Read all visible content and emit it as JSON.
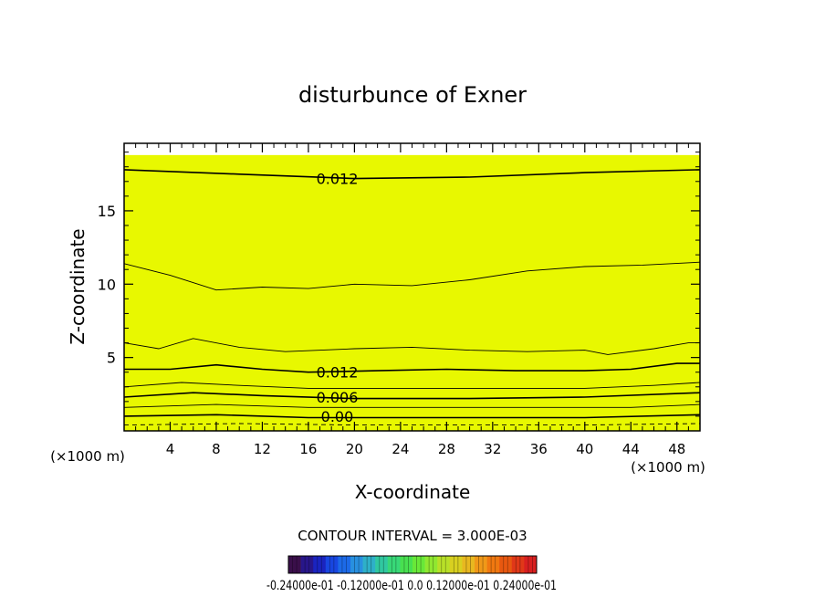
{
  "chart_data": {
    "type": "heatmap",
    "title": "disturbunce of Exner",
    "xlabel": "X-coordinate",
    "ylabel": "Z-coordinate",
    "x_unit": "(×1000 m)",
    "z_unit": "(×1000 m)",
    "xlim": [
      0,
      50
    ],
    "ylim": [
      0,
      19.6
    ],
    "x_ticks": [
      4,
      8,
      12,
      16,
      20,
      24,
      28,
      32,
      36,
      40,
      44,
      48
    ],
    "y_ticks": [
      5,
      10,
      15
    ],
    "contour_interval_text": "CONTOUR INTERVAL = 3.000E-03",
    "contour_labels": [
      {
        "text": "0.012",
        "x": 18.5,
        "z": 17.2
      },
      {
        "text": "0.012",
        "x": 18.5,
        "z": 4.0
      },
      {
        "text": "0.006",
        "x": 18.5,
        "z": 2.3
      },
      {
        "text": "0.00",
        "x": 18.5,
        "z": 1.0
      }
    ],
    "bands": [
      {
        "z": 0.0,
        "color": "#30e840"
      },
      {
        "z": 0.8,
        "color": "#38f040"
      },
      {
        "z": 1.5,
        "color": "#60f830"
      },
      {
        "z": 2.2,
        "color": "#80f828"
      },
      {
        "z": 2.9,
        "color": "#a8f820"
      },
      {
        "z": 3.6,
        "color": "#d0f818"
      },
      {
        "z": 4.3,
        "color": "#f0f000"
      },
      {
        "z": 4.9,
        "color": "#f8d800"
      },
      {
        "z": 5.5,
        "color": "#f8c000"
      },
      {
        "z": 6.3,
        "color": "#f8b000"
      },
      {
        "z": 7.4,
        "color": "#f8a000"
      },
      {
        "z": 9.6,
        "color": "#f8b000"
      },
      {
        "z": 11.3,
        "color": "#f8c000"
      },
      {
        "z": 13.2,
        "color": "#f8d000"
      },
      {
        "z": 15.5,
        "color": "#f8e000"
      },
      {
        "z": 17.8,
        "color": "#f0f000"
      },
      {
        "z": 18.8,
        "color": "#e8f800"
      }
    ],
    "contours": [
      {
        "style": "solid",
        "weight": "major",
        "points": [
          [
            0,
            17.8
          ],
          [
            10,
            17.5
          ],
          [
            20,
            17.2
          ],
          [
            30,
            17.3
          ],
          [
            40,
            17.6
          ],
          [
            50,
            17.8
          ]
        ]
      },
      {
        "style": "solid",
        "weight": "minor",
        "points": [
          [
            0,
            11.4
          ],
          [
            4,
            10.6
          ],
          [
            8,
            9.6
          ],
          [
            12,
            9.8
          ],
          [
            16,
            9.7
          ],
          [
            20,
            10.0
          ],
          [
            25,
            9.9
          ],
          [
            30,
            10.3
          ],
          [
            35,
            10.9
          ],
          [
            40,
            11.2
          ],
          [
            45,
            11.3
          ],
          [
            50,
            11.5
          ]
        ]
      },
      {
        "style": "solid",
        "weight": "minor",
        "points": [
          [
            0,
            6.0
          ],
          [
            3,
            5.6
          ],
          [
            6,
            6.3
          ],
          [
            10,
            5.7
          ],
          [
            14,
            5.4
          ],
          [
            20,
            5.6
          ],
          [
            25,
            5.7
          ],
          [
            30,
            5.5
          ],
          [
            35,
            5.4
          ],
          [
            40,
            5.5
          ],
          [
            42,
            5.2
          ],
          [
            46,
            5.6
          ],
          [
            49,
            6.0
          ],
          [
            50,
            6.0
          ]
        ]
      },
      {
        "style": "solid",
        "weight": "major",
        "points": [
          [
            0,
            4.2
          ],
          [
            4,
            4.2
          ],
          [
            8,
            4.5
          ],
          [
            12,
            4.2
          ],
          [
            16,
            4.0
          ],
          [
            22,
            4.1
          ],
          [
            28,
            4.2
          ],
          [
            34,
            4.1
          ],
          [
            40,
            4.1
          ],
          [
            44,
            4.2
          ],
          [
            48,
            4.6
          ],
          [
            50,
            4.6
          ]
        ]
      },
      {
        "style": "solid",
        "weight": "minor",
        "points": [
          [
            0,
            3.0
          ],
          [
            5,
            3.3
          ],
          [
            10,
            3.1
          ],
          [
            16,
            2.9
          ],
          [
            24,
            2.9
          ],
          [
            32,
            2.9
          ],
          [
            40,
            2.9
          ],
          [
            46,
            3.1
          ],
          [
            50,
            3.3
          ]
        ]
      },
      {
        "style": "solid",
        "weight": "major",
        "points": [
          [
            0,
            2.3
          ],
          [
            6,
            2.6
          ],
          [
            12,
            2.4
          ],
          [
            20,
            2.2
          ],
          [
            30,
            2.2
          ],
          [
            40,
            2.3
          ],
          [
            50,
            2.6
          ]
        ]
      },
      {
        "style": "solid",
        "weight": "minor",
        "points": [
          [
            0,
            1.6
          ],
          [
            8,
            1.8
          ],
          [
            16,
            1.6
          ],
          [
            26,
            1.6
          ],
          [
            36,
            1.6
          ],
          [
            44,
            1.6
          ],
          [
            50,
            1.8
          ]
        ]
      },
      {
        "style": "solid",
        "weight": "major",
        "points": [
          [
            0,
            1.0
          ],
          [
            8,
            1.1
          ],
          [
            16,
            0.9
          ],
          [
            28,
            0.9
          ],
          [
            40,
            0.9
          ],
          [
            50,
            1.1
          ]
        ]
      },
      {
        "style": "dashed",
        "weight": "minor",
        "points": [
          [
            0,
            0.4
          ],
          [
            10,
            0.5
          ],
          [
            20,
            0.4
          ],
          [
            30,
            0.4
          ],
          [
            40,
            0.4
          ],
          [
            50,
            0.5
          ]
        ]
      }
    ],
    "colorbar": {
      "label": "-0.24000e-01 -0.12000e-01 0.0 0.12000e-01 0.24000e-01",
      "colors": [
        "#3a0f4a",
        "#28168a",
        "#1a24c0",
        "#1846e0",
        "#1c6ae8",
        "#2890e0",
        "#2eb0c8",
        "#30c8a0",
        "#38d878",
        "#48e050",
        "#68e838",
        "#90e830",
        "#b8e028",
        "#d8d020",
        "#e8b820",
        "#f09818",
        "#f07810",
        "#e85810",
        "#e03818",
        "#d82020"
      ]
    }
  }
}
